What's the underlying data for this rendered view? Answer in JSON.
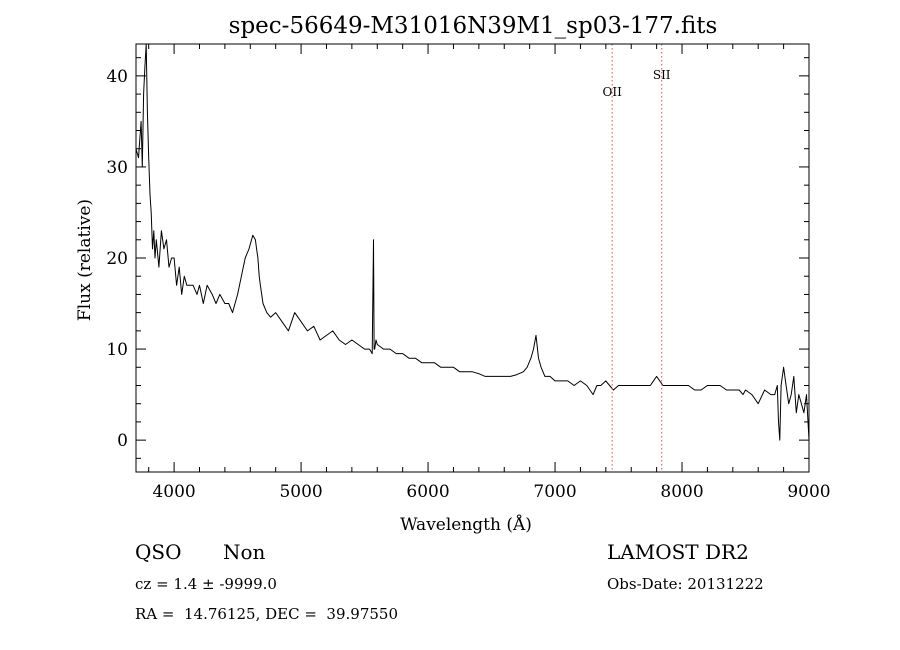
{
  "chart_data": {
    "type": "line",
    "title": "spec-56649-M31016N39M1_sp03-177.fits",
    "xlabel": "Wavelength (Å)",
    "ylabel": "Flux (relative)",
    "xlim": [
      3700,
      9000
    ],
    "ylim": [
      -3.5,
      43.5
    ],
    "x_ticks": [
      4000,
      5000,
      6000,
      7000,
      8000,
      9000
    ],
    "y_ticks": [
      0,
      10,
      20,
      30,
      40
    ],
    "grid": false,
    "series": [
      {
        "x": [
          3700,
          3720,
          3740,
          3750,
          3760,
          3770,
          3780,
          3790,
          3800,
          3810,
          3820,
          3830,
          3840,
          3850,
          3860,
          3880,
          3900,
          3920,
          3940,
          3960,
          3980,
          4000,
          4020,
          4040,
          4060,
          4080,
          4100,
          4120,
          4150,
          4180,
          4200,
          4230,
          4260,
          4300,
          4330,
          4360,
          4400,
          4430,
          4460,
          4500,
          4530,
          4560,
          4590,
          4620,
          4640,
          4650,
          4660,
          4670,
          4680,
          4700,
          4730,
          4760,
          4800,
          4850,
          4900,
          4950,
          5000,
          5050,
          5100,
          5150,
          5200,
          5250,
          5300,
          5350,
          5400,
          5450,
          5500,
          5540,
          5560,
          5570,
          5575,
          5580,
          5590,
          5600,
          5650,
          5700,
          5750,
          5800,
          5850,
          5900,
          5950,
          6000,
          6050,
          6100,
          6150,
          6200,
          6250,
          6300,
          6350,
          6400,
          6450,
          6500,
          6550,
          6600,
          6650,
          6700,
          6750,
          6780,
          6810,
          6830,
          6850,
          6870,
          6890,
          6920,
          6960,
          7000,
          7050,
          7100,
          7150,
          7200,
          7250,
          7300,
          7330,
          7360,
          7400,
          7430,
          7460,
          7500,
          7550,
          7600,
          7650,
          7700,
          7750,
          7800,
          7850,
          7900,
          7950,
          8000,
          8050,
          8100,
          8150,
          8200,
          8250,
          8300,
          8350,
          8400,
          8450,
          8480,
          8500,
          8550,
          8600,
          8650,
          8700,
          8730,
          8750,
          8760,
          8770,
          8780,
          8800,
          8820,
          8840,
          8860,
          8880,
          8900,
          8920,
          8940,
          8960,
          8980,
          9000
        ],
        "y": [
          32,
          31,
          35,
          30,
          38,
          41,
          43.5,
          36,
          31,
          27,
          25,
          21,
          23,
          20,
          22,
          19,
          23,
          21,
          22,
          19,
          20,
          20,
          17,
          19,
          16,
          18,
          17,
          17,
          17,
          16,
          17,
          15,
          17,
          16,
          15,
          16,
          15,
          15,
          14,
          16,
          18,
          20,
          21,
          22.5,
          22,
          21,
          20,
          18,
          17,
          15,
          14,
          13.5,
          14,
          13,
          12,
          14,
          13,
          12,
          12.5,
          11,
          11.5,
          12,
          11,
          10.5,
          11,
          10.5,
          10,
          10,
          9.5,
          22,
          10,
          10,
          11,
          10.5,
          10,
          10,
          9.5,
          9.5,
          9,
          9,
          8.5,
          8.5,
          8.5,
          8,
          8,
          8,
          7.5,
          7.5,
          7.5,
          7.3,
          7,
          7,
          7,
          7,
          7,
          7.2,
          7.5,
          8,
          9,
          10,
          11.5,
          9,
          8,
          7,
          7,
          6.5,
          6.5,
          6.5,
          6,
          6.5,
          6,
          5,
          6,
          6,
          6.5,
          6,
          5.5,
          6,
          6,
          6,
          6,
          6,
          6,
          7,
          6,
          6,
          6,
          6,
          6,
          5.5,
          5.5,
          6,
          6,
          6,
          5.5,
          5.5,
          5.5,
          5,
          5.5,
          5,
          4,
          5.5,
          5,
          5,
          6,
          2,
          0,
          6,
          8,
          6,
          4,
          5,
          7,
          3,
          5,
          4,
          3,
          5,
          0
        ]
      }
    ],
    "markers": [
      {
        "label": "OII",
        "x": 7450
      },
      {
        "label": "SII",
        "x": 7840
      }
    ],
    "marker_color": "#e0504a"
  },
  "info": {
    "class": "QSO",
    "subclass": "Non",
    "survey": "LAMOST DR2",
    "cz": "cz = 1.4 ± -9999.0",
    "obs_date": "Obs-Date: 20131222",
    "radec": "RA =  14.76125, DEC =  39.97550"
  }
}
